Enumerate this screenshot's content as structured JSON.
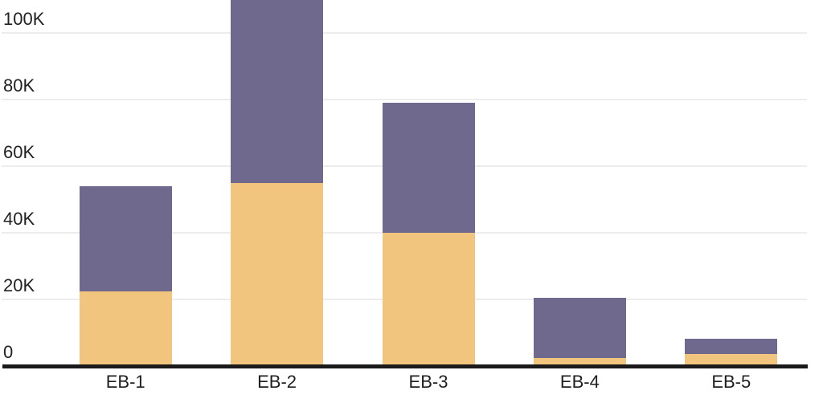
{
  "chart_data": {
    "type": "bar",
    "stacked": true,
    "title": "",
    "subtitle": "",
    "xlabel": "",
    "ylabel": "",
    "categories": [
      "EB-1",
      "EB-2",
      "EB-3",
      "EB-4",
      "EB-5"
    ],
    "series": [
      {
        "name": "bottom-series-orange",
        "color": "#F2C57F",
        "values": [
          22500,
          55000,
          40000,
          2500,
          3600
        ]
      },
      {
        "name": "top-series-purple",
        "color": "#6F6A8D",
        "values": [
          31500,
          55000,
          39000,
          18000,
          4700
        ]
      }
    ],
    "stack_totals": [
      54000,
      110000,
      79000,
      20500,
      8300
    ],
    "ylim": [
      0,
      110000
    ],
    "yticks": [
      {
        "value": 0,
        "label": "0"
      },
      {
        "value": 20000,
        "label": "20K"
      },
      {
        "value": 40000,
        "label": "40K"
      },
      {
        "value": 60000,
        "label": "60K"
      },
      {
        "value": 80000,
        "label": "80K"
      },
      {
        "value": 100000,
        "label": "100K"
      }
    ],
    "grid": true,
    "legend": "none",
    "colors": {
      "background": "#FFFFFF",
      "gridline": "#EDEDED",
      "axis_line": "#1A1A1A",
      "tick_text": "#222222"
    }
  }
}
